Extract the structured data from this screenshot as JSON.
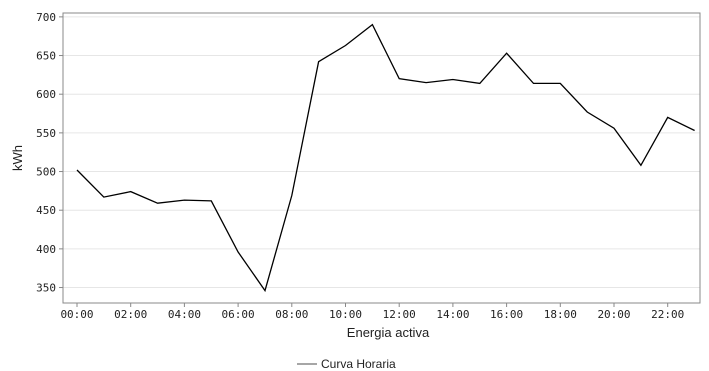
{
  "chart_data": {
    "type": "line",
    "title": "",
    "xlabel": "Energia activa",
    "ylabel": "kWh",
    "x": [
      "00:00",
      "01:00",
      "02:00",
      "03:00",
      "04:00",
      "05:00",
      "06:00",
      "07:00",
      "08:00",
      "09:00",
      "10:00",
      "11:00",
      "12:00",
      "13:00",
      "14:00",
      "15:00",
      "16:00",
      "17:00",
      "18:00",
      "19:00",
      "20:00",
      "21:00",
      "22:00",
      "23:00"
    ],
    "x_tick_labels": [
      "00:00",
      "02:00",
      "04:00",
      "06:00",
      "08:00",
      "10:00",
      "12:00",
      "14:00",
      "16:00",
      "18:00",
      "20:00",
      "22:00"
    ],
    "y_ticks": [
      350,
      400,
      450,
      500,
      550,
      600,
      650,
      700
    ],
    "ylim": [
      330,
      705
    ],
    "grid": "horizontal",
    "legend_position": "bottom",
    "series": [
      {
        "name": "Curva Horaria",
        "color": "#000000",
        "values": [
          502,
          467,
          474,
          459,
          463,
          462,
          396,
          346,
          469,
          642,
          663,
          690,
          620,
          615,
          619,
          614,
          653,
          614,
          614,
          577,
          556,
          508,
          570,
          553
        ]
      }
    ]
  }
}
